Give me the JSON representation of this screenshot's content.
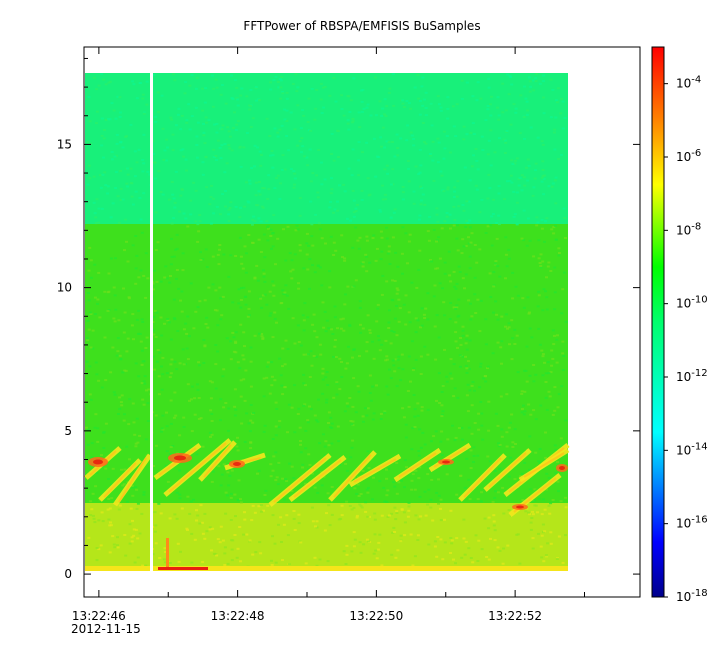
{
  "chart_data": {
    "type": "heatmap",
    "title": "FFTPower of RBSPA/EMFISIS  BuSamples",
    "xlabel": "",
    "ylabel": "",
    "x_ticks": [
      "13:22:46",
      "13:22:48",
      "13:22:50",
      "13:22:52"
    ],
    "x_date": "2012-11-15",
    "y_ticks": [
      "0",
      "5",
      "10",
      "15"
    ],
    "ylim": [
      -0.8,
      18.4
    ],
    "y_tick_values": [
      0,
      5,
      10,
      15
    ],
    "xlim_seconds": [
      45.8,
      53.8
    ],
    "x_tick_seconds": [
      46,
      48,
      50,
      52
    ],
    "colorbar": {
      "scale": "log",
      "range": [
        1e-18,
        0.001
      ],
      "tick_labels": [
        {
          "base": "10",
          "exp": "-4"
        },
        {
          "base": "10",
          "exp": "-6"
        },
        {
          "base": "10",
          "exp": "-8"
        },
        {
          "base": "10",
          "exp": "-10"
        },
        {
          "base": "10",
          "exp": "-12"
        },
        {
          "base": "10",
          "exp": "-14"
        },
        {
          "base": "10",
          "exp": "-16"
        },
        {
          "base": "10",
          "exp": "-18"
        }
      ],
      "tick_exponents": [
        -4,
        -6,
        -8,
        -10,
        -12,
        -14,
        -16,
        -18
      ],
      "colors": [
        "#00008b",
        "#0000ff",
        "#00ffff",
        "#00ff80",
        "#00ff00",
        "#ffff00",
        "#ff8000",
        "#ff0000"
      ]
    },
    "data_extent": {
      "x_seconds": [
        45.8,
        52.7
      ],
      "y": [
        0,
        17.5
      ]
    },
    "data_gap_seconds": 46.75,
    "regions": [
      {
        "y_from": 12.2,
        "y_to": 17.5,
        "log_power": -13
      },
      {
        "y_from": 2.4,
        "y_to": 12.2,
        "log_power": -10.7
      },
      {
        "y_from": 0,
        "y_to": 2.4,
        "log_power": -9
      }
    ],
    "chorus_band_y": [
      2.4,
      4.5
    ]
  }
}
